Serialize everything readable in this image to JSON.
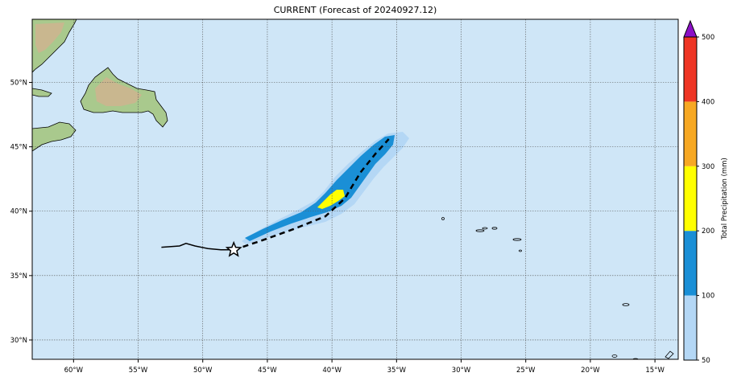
{
  "title": "CURRENT (Forecast of 20240927.12)",
  "map": {
    "lon_range": [
      -63.2,
      -13.2
    ],
    "lat_range": [
      28.5,
      54.9
    ],
    "lon_ticks": [
      -60,
      -55,
      -50,
      -45,
      -40,
      -35,
      -30,
      -25,
      -20,
      -15
    ],
    "lon_labels": [
      "60°W",
      "55°W",
      "50°W",
      "45°W",
      "40°W",
      "35°W",
      "30°W",
      "25°W",
      "20°W",
      "15°W"
    ],
    "lat_ticks": [
      30,
      35,
      40,
      45,
      50
    ],
    "lat_labels": [
      "30°N",
      "35°N",
      "40°N",
      "45°N",
      "50°N"
    ],
    "grid": true,
    "colors": {
      "ocean": "#cfe6f7",
      "land": "#9fc486",
      "land_high": "#c7b58a"
    },
    "track_past": [
      [
        -53.2,
        37.2
      ],
      [
        -51.8,
        37.3
      ],
      [
        -51.3,
        37.5
      ],
      [
        -50.6,
        37.3
      ],
      [
        -49.6,
        37.1
      ],
      [
        -48.6,
        37.0
      ],
      [
        -47.6,
        37.0
      ]
    ],
    "track_forecast": [
      [
        -47.6,
        37.0
      ],
      [
        -45.5,
        37.7
      ],
      [
        -43.0,
        38.6
      ],
      [
        -40.5,
        39.6
      ],
      [
        -39.0,
        41.0
      ],
      [
        -37.8,
        43.0
      ],
      [
        -36.6,
        44.5
      ],
      [
        -35.6,
        45.6
      ]
    ],
    "current_position": [
      -47.6,
      37.0
    ]
  },
  "colorbar": {
    "title": "Total Precipitation (mm)",
    "labels": [
      "50",
      "100",
      "200",
      "300",
      "400",
      "500"
    ],
    "colors": [
      "#b4d7f5",
      "#1a8fd6",
      "#ffff00",
      "#f7a823",
      "#ee3524"
    ],
    "extend_color": "#8c10c6"
  }
}
